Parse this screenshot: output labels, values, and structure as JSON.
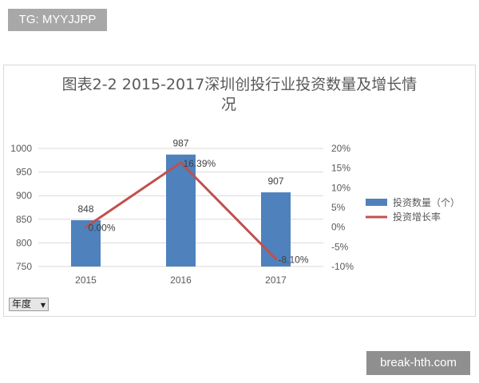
{
  "badge": {
    "text": "TG: MYYJJPP"
  },
  "watermark": {
    "text": "break-hth.com"
  },
  "filter": {
    "label": "年度"
  },
  "chart_data": {
    "type": "bar+line",
    "title_line1": "图表2-2  2015-2017深圳创投行业投资数量及增长情",
    "title_line2": "况",
    "categories": [
      "2015",
      "2016",
      "2017"
    ],
    "series": [
      {
        "name": "投资数量（个）",
        "type": "bar",
        "axis": "left",
        "values": [
          848,
          987,
          907
        ],
        "labels": [
          "848",
          "987",
          "907"
        ],
        "color": "#4f81bd"
      },
      {
        "name": "投资增长率",
        "type": "line",
        "axis": "right",
        "values": [
          0.0,
          16.39,
          -8.1
        ],
        "labels": [
          "0.00%",
          "16.39%",
          "-8.10%"
        ],
        "color": "#c0504d"
      }
    ],
    "left_axis": {
      "min": 750,
      "max": 1000,
      "ticks": [
        "1000",
        "950",
        "900",
        "850",
        "800",
        "750"
      ]
    },
    "right_axis": {
      "min": -10,
      "max": 20,
      "ticks": [
        "20%",
        "15%",
        "10%",
        "5%",
        "0%",
        "-5%",
        "-10%"
      ]
    },
    "grid": true,
    "legend_position": "right"
  }
}
